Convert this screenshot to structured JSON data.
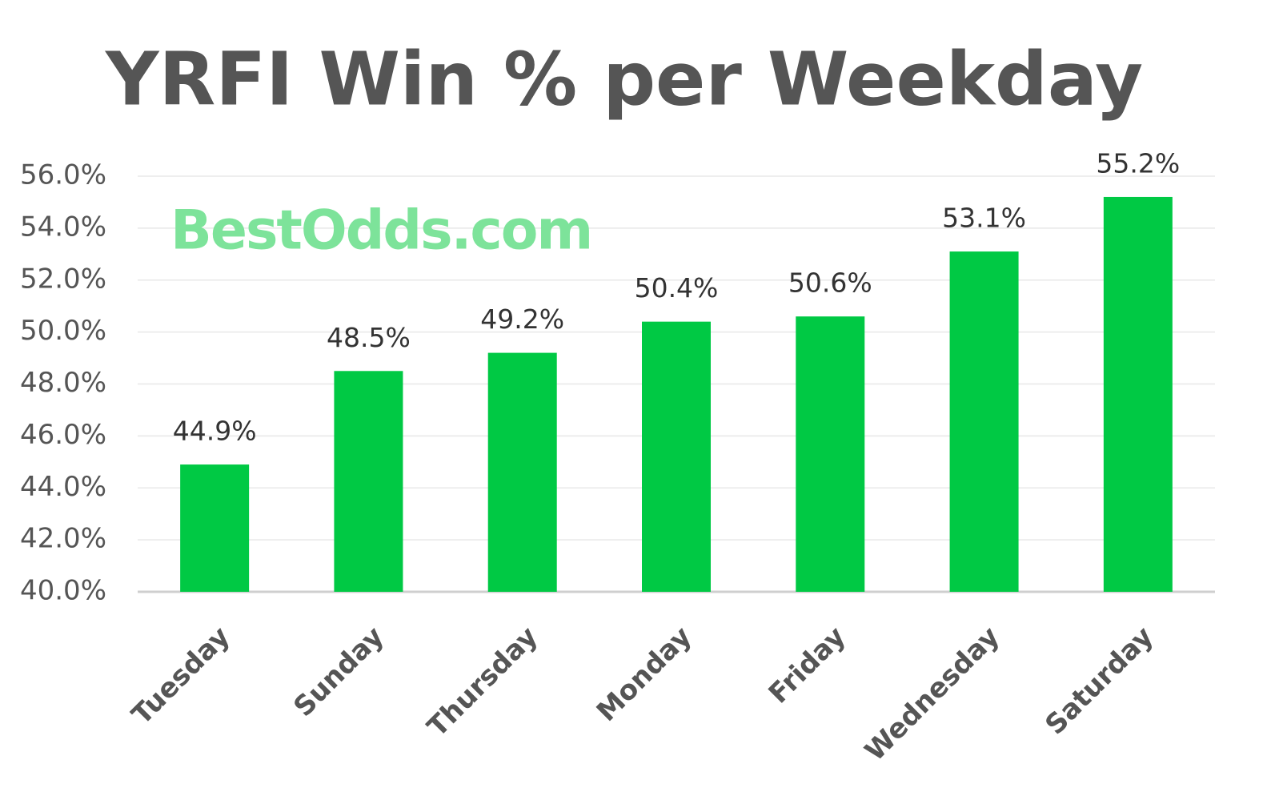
{
  "chart_data": {
    "type": "bar",
    "title": "YRFI Win % per Weekday",
    "watermark": "BestOdds.com",
    "categories": [
      "Tuesday",
      "Sunday",
      "Thursday",
      "Monday",
      "Friday",
      "Wednesday",
      "Saturday"
    ],
    "values": [
      44.9,
      48.5,
      49.2,
      50.4,
      50.6,
      53.1,
      55.2
    ],
    "value_labels": [
      "44.9%",
      "48.5%",
      "49.2%",
      "50.4%",
      "50.6%",
      "53.1%",
      "55.2%"
    ],
    "color": "#00c944",
    "ylim": [
      40,
      56
    ],
    "yticks": [
      {
        "value": 40,
        "label": "40.0%"
      },
      {
        "value": 42,
        "label": "42.0%"
      },
      {
        "value": 44,
        "label": "44.0%"
      },
      {
        "value": 46,
        "label": "46.0%"
      },
      {
        "value": 48,
        "label": "48.0%"
      },
      {
        "value": 50,
        "label": "50.0%"
      },
      {
        "value": 52,
        "label": "52.0%"
      },
      {
        "value": 54,
        "label": "54.0%"
      },
      {
        "value": 56,
        "label": "56.0%"
      }
    ],
    "grid": true
  }
}
